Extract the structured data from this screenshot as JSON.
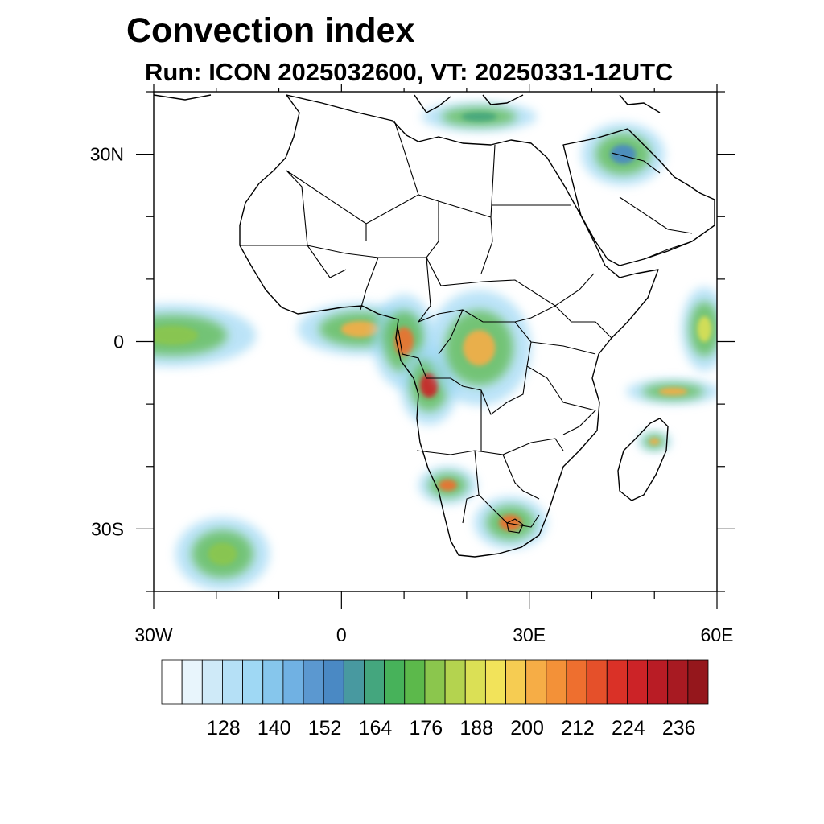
{
  "title": "Convection index",
  "subtitle": "Run: ICON 2025032600,  VT: 20250331-12UTC",
  "map": {
    "region": "Africa",
    "lon_range": [
      -30,
      60
    ],
    "lat_range": [
      -40,
      40
    ],
    "lon_ticks": [
      {
        "value": -30,
        "label": "30W"
      },
      {
        "value": 0,
        "label": "0"
      },
      {
        "value": 30,
        "label": "30E"
      },
      {
        "value": 60,
        "label": "60E"
      }
    ],
    "lat_ticks": [
      {
        "value": 30,
        "label": "30N"
      },
      {
        "value": 0,
        "label": "0"
      },
      {
        "value": -30,
        "label": "30S"
      }
    ]
  },
  "colorbar": {
    "colors": [
      "#ffffff",
      "#e8f5fc",
      "#cfeaf8",
      "#b5e0f6",
      "#9fd8f4",
      "#86c6ec",
      "#70b1e3",
      "#5b98d0",
      "#4a89c4",
      "#4899a0",
      "#44a67e",
      "#47b25a",
      "#5cb94b",
      "#8bc64d",
      "#b4d34f",
      "#dbe055",
      "#f2e35a",
      "#f6cc52",
      "#f6ad46",
      "#f39138",
      "#ee6f2f",
      "#e5502a",
      "#da3127",
      "#cc2327",
      "#b91c25",
      "#a81a22",
      "#95171c"
    ],
    "labels": [
      "128",
      "140",
      "152",
      "164",
      "176",
      "188",
      "200",
      "212",
      "224",
      "236"
    ]
  },
  "convection_areas": [
    {
      "name": "atlantic-equatorial-band",
      "lon": -27,
      "lat": 1,
      "intensity": 176
    },
    {
      "name": "gulf-of-guinea",
      "lon": 3,
      "lat": 2,
      "intensity": 200
    },
    {
      "name": "congo-basin-west",
      "lon": 10,
      "lat": 0,
      "intensity": 212
    },
    {
      "name": "angola-coast",
      "lon": 14,
      "lat": -7,
      "intensity": 224
    },
    {
      "name": "drc-east",
      "lon": 22,
      "lat": -1,
      "intensity": 200
    },
    {
      "name": "namibia-angola",
      "lon": 17,
      "lat": -23,
      "intensity": 212
    },
    {
      "name": "south-africa",
      "lon": 27,
      "lat": -29,
      "intensity": 212
    },
    {
      "name": "madagascar-north",
      "lon": 50,
      "lat": -16,
      "intensity": 200
    },
    {
      "name": "indian-ocean-band",
      "lon": 53,
      "lat": -8,
      "intensity": 200
    },
    {
      "name": "indian-ocean-east",
      "lon": 58,
      "lat": 2,
      "intensity": 188
    },
    {
      "name": "south-atlantic-cyclone",
      "lon": -19,
      "lat": -34,
      "intensity": 176
    },
    {
      "name": "mediterranean",
      "lon": 22,
      "lat": 36,
      "intensity": 164
    },
    {
      "name": "arabia",
      "lon": 45,
      "lat": 30,
      "intensity": 152
    }
  ]
}
